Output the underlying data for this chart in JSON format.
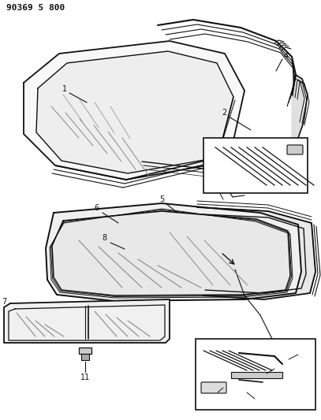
{
  "title_code": "90369 5 800",
  "bg": "#ffffff",
  "lc": "#111111",
  "fig_w": 4.07,
  "fig_h": 5.33,
  "dpi": 100
}
